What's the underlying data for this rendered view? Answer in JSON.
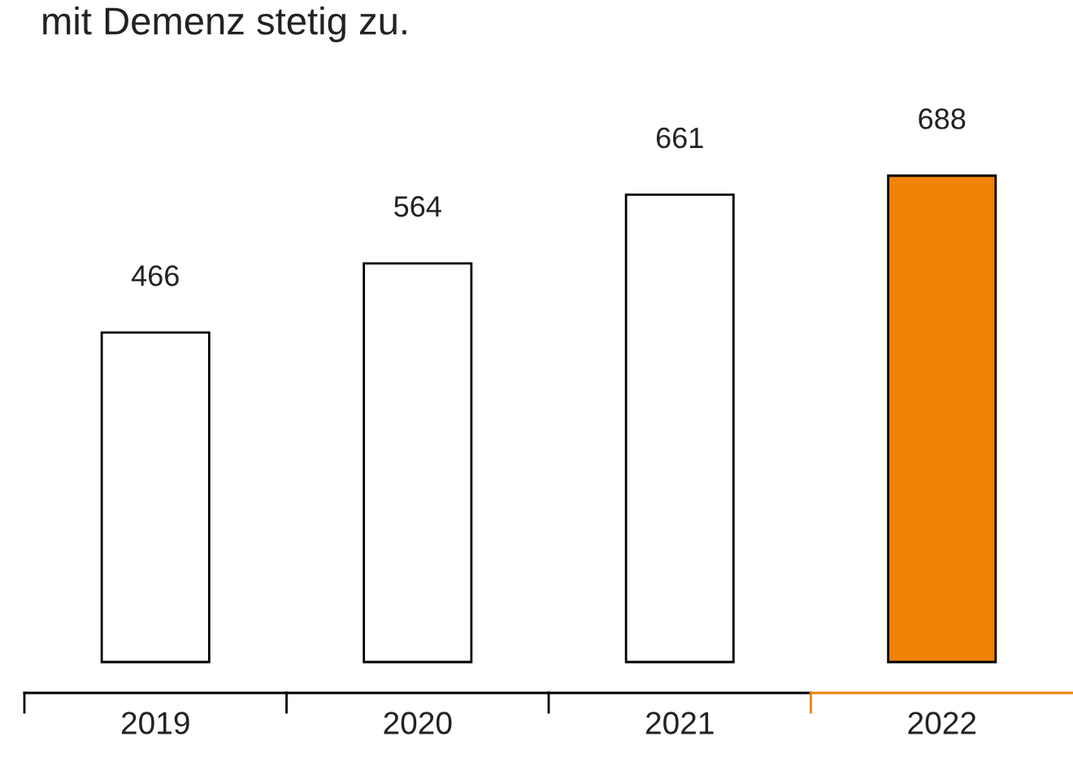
{
  "chart_data": {
    "type": "bar",
    "title": "mit Demenz stetig zu.",
    "categories": [
      "2019",
      "2020",
      "2021",
      "2022"
    ],
    "values": [
      466,
      564,
      661,
      688
    ],
    "colors": [
      "#ffffff",
      "#ffffff",
      "#ffffff",
      "#f08308"
    ],
    "data_labels": true,
    "grid": false,
    "legend": false,
    "tick_labels": "x"
  }
}
